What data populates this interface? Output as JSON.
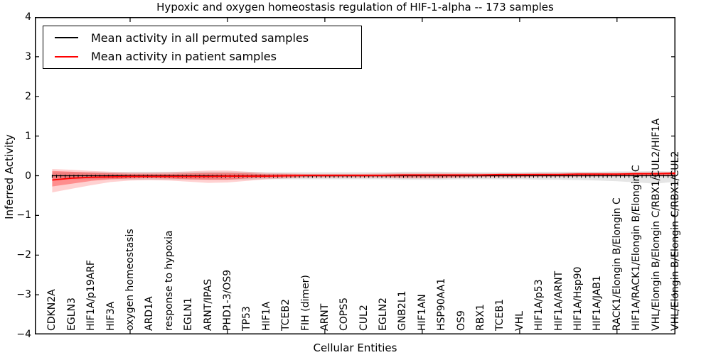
{
  "chart_data": {
    "type": "line",
    "title": "Hypoxic and oxygen homeostasis regulation of HIF-1-alpha -- 173 samples",
    "xlabel": "Cellular Entities",
    "ylabel": "Inferred Activity",
    "ylim": [
      -4,
      4
    ],
    "xlim": [
      0,
      33
    ],
    "grid": false,
    "legend_position": "upper left",
    "yticks": [
      {
        "value": 4,
        "label": "4"
      },
      {
        "value": 3,
        "label": "3"
      },
      {
        "value": 2,
        "label": "2"
      },
      {
        "value": 1,
        "label": "1"
      },
      {
        "value": 0,
        "label": "0"
      },
      {
        "value": -1,
        "label": "−1"
      },
      {
        "value": -2,
        "label": "−2"
      },
      {
        "value": -3,
        "label": "−3"
      },
      {
        "value": -4,
        "label": "−4"
      }
    ],
    "xtick_values": [
      5,
      10,
      15,
      20,
      25,
      30
    ],
    "categories": [
      "CDKN2A",
      "EGLN3",
      "HIF1A/p19ARF",
      "HIF3A",
      "oxygen homeostasis",
      "ARD1A",
      "response to hypoxia",
      "EGLN1",
      "ARNT/IPAS",
      "PHD1-3/OS9",
      "TP53",
      "HIF1A",
      "TCEB2",
      "FIH (dimer)",
      "ARNT",
      "COPS5",
      "CUL2",
      "EGLN2",
      "GNB2L1",
      "HIF1AN",
      "HSP90AA1",
      "OS9",
      "RBX1",
      "TCEB1",
      "VHL",
      "HIF1A/p53",
      "HIF1A/ARNT",
      "HIF1A/Hsp90",
      "HIF1A/JAB1",
      "RACK1/Elongin B/Elongin C",
      "HIF1A/RACK1/Elongin B/Elongin C",
      "VHL/Elongin B/Elongin C/RBX1/CUL2/HIF1A",
      "VHL/Elongin B/Elongin C/RBX1/CUL2"
    ],
    "series": [
      {
        "name": "Mean activity in all permuted samples",
        "color": "#000000",
        "band_color": "rgba(0,0,0,0.10)",
        "values": [
          0,
          0,
          0,
          0,
          0,
          0,
          0,
          0,
          0,
          0,
          0,
          0,
          0,
          0,
          0,
          0,
          0,
          0,
          0,
          0,
          0,
          0,
          0,
          0,
          0,
          0,
          0,
          0,
          0,
          0,
          0,
          0,
          0
        ],
        "band_low": [
          -0.09,
          -0.09,
          -0.09,
          -0.09,
          -0.1,
          -0.1,
          -0.1,
          -0.1,
          -0.1,
          -0.1,
          -0.1,
          -0.09,
          -0.09,
          -0.09,
          -0.09,
          -0.09,
          -0.09,
          -0.09,
          -0.1,
          -0.1,
          -0.1,
          -0.09,
          -0.09,
          -0.09,
          -0.09,
          -0.1,
          -0.1,
          -0.11,
          -0.12,
          -0.14,
          -0.17,
          -0.2,
          -0.15
        ],
        "band_high": [
          0.09,
          0.09,
          0.09,
          0.09,
          0.1,
          0.1,
          0.1,
          0.1,
          0.1,
          0.1,
          0.1,
          0.09,
          0.09,
          0.09,
          0.09,
          0.09,
          0.09,
          0.09,
          0.1,
          0.1,
          0.1,
          0.09,
          0.09,
          0.09,
          0.09,
          0.1,
          0.1,
          0.1,
          0.1,
          0.11,
          0.11,
          0.12,
          0.1
        ]
      },
      {
        "name": "Mean activity in patient samples",
        "color": "#ff0000",
        "band_outer_color": "rgba(255,0,0,0.18)",
        "band_inner_color": "rgba(255,0,0,0.32)",
        "values": [
          -0.11,
          -0.06,
          -0.04,
          -0.03,
          -0.02,
          -0.02,
          -0.02,
          -0.02,
          -0.02,
          -0.01,
          -0.01,
          -0.01,
          0.0,
          0.01,
          0.01,
          0.01,
          0.01,
          0.01,
          0.02,
          0.02,
          0.02,
          0.02,
          0.02,
          0.03,
          0.03,
          0.03,
          0.03,
          0.04,
          0.04,
          0.04,
          0.05,
          0.05,
          0.06
        ],
        "band_outer_low": [
          -0.42,
          -0.33,
          -0.24,
          -0.16,
          -0.12,
          -0.11,
          -0.12,
          -0.15,
          -0.18,
          -0.17,
          -0.13,
          -0.09,
          -0.07,
          -0.05,
          -0.05,
          -0.05,
          -0.05,
          -0.05,
          -0.07,
          -0.07,
          -0.07,
          -0.05,
          -0.04,
          -0.04,
          -0.04,
          -0.03,
          -0.03,
          -0.03,
          -0.02,
          -0.02,
          -0.01,
          -0.01,
          -0.01
        ],
        "band_outer_high": [
          0.17,
          0.15,
          0.12,
          0.1,
          0.08,
          0.08,
          0.09,
          0.11,
          0.13,
          0.13,
          0.1,
          0.07,
          0.06,
          0.05,
          0.05,
          0.05,
          0.05,
          0.06,
          0.07,
          0.07,
          0.07,
          0.07,
          0.06,
          0.06,
          0.06,
          0.07,
          0.07,
          0.08,
          0.08,
          0.08,
          0.09,
          0.09,
          0.1
        ],
        "band_inner_low": [
          -0.27,
          -0.2,
          -0.13,
          -0.09,
          -0.07,
          -0.06,
          -0.07,
          -0.09,
          -0.1,
          -0.1,
          -0.07,
          -0.05,
          -0.04,
          -0.03,
          -0.03,
          -0.03,
          -0.03,
          -0.03,
          -0.04,
          -0.04,
          -0.04,
          -0.03,
          -0.02,
          -0.02,
          -0.02,
          -0.01,
          -0.01,
          -0.01,
          0.0,
          0.0,
          0.01,
          0.01,
          0.01
        ],
        "band_inner_high": [
          0.12,
          0.1,
          0.08,
          0.06,
          0.05,
          0.05,
          0.05,
          0.06,
          0.07,
          0.07,
          0.06,
          0.04,
          0.04,
          0.03,
          0.03,
          0.03,
          0.03,
          0.03,
          0.04,
          0.04,
          0.04,
          0.04,
          0.04,
          0.04,
          0.04,
          0.05,
          0.05,
          0.06,
          0.06,
          0.06,
          0.07,
          0.07,
          0.08
        ]
      }
    ]
  }
}
